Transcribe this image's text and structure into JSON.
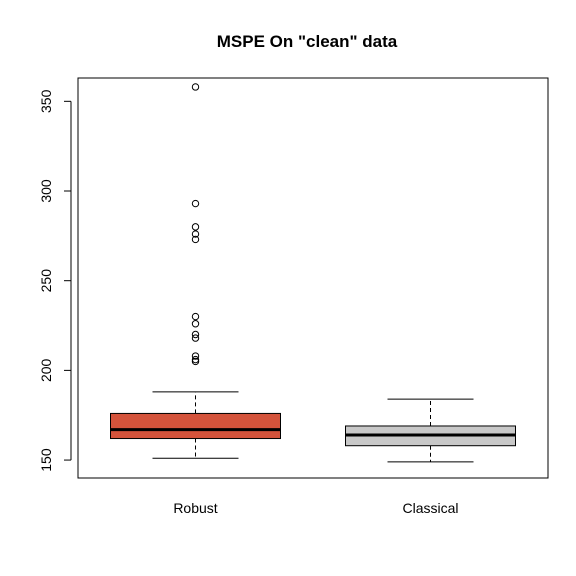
{
  "chart_data": {
    "type": "boxplot",
    "title": "MSPE On \"clean\" data",
    "xlabel": "",
    "ylabel": "",
    "ylim": [
      140,
      363
    ],
    "yticks": [
      150,
      200,
      250,
      300,
      350
    ],
    "ytick_labels": [
      "150",
      "200",
      "250",
      "300",
      "350"
    ],
    "categories": [
      "Robust",
      "Classical"
    ],
    "boxes": [
      {
        "category": "Robust",
        "whisker_low": 151,
        "q1": 162,
        "median": 167,
        "q3": 176,
        "whisker_high": 188,
        "outliers": [
          358,
          293,
          280,
          276,
          273,
          230,
          226,
          220,
          218,
          208,
          206,
          205
        ],
        "color": "#d4533b"
      },
      {
        "category": "Classical",
        "whisker_low": 149,
        "q1": 158,
        "median": 164,
        "q3": 169,
        "whisker_high": 184,
        "outliers": [],
        "color": "#c8c8c8"
      }
    ],
    "grid": false,
    "legend": "none"
  }
}
